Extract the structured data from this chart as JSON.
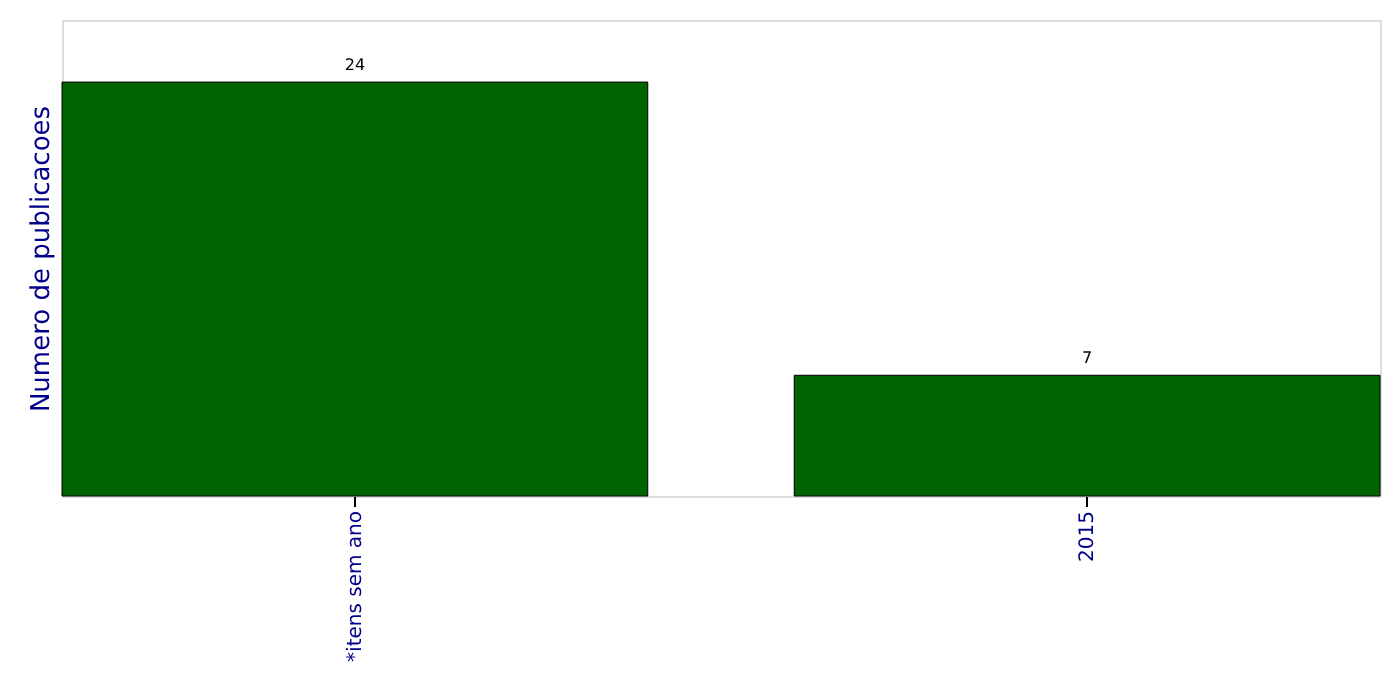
{
  "chart_data": {
    "type": "bar",
    "ylabel": "Numero de publicacoes",
    "categories": [
      "*itens sem ano",
      "2015"
    ],
    "values": [
      24,
      7
    ],
    "color": "#006400",
    "ylim": [
      0,
      27.6
    ],
    "data_labels": true,
    "tick_labels": "x",
    "grid": false
  }
}
